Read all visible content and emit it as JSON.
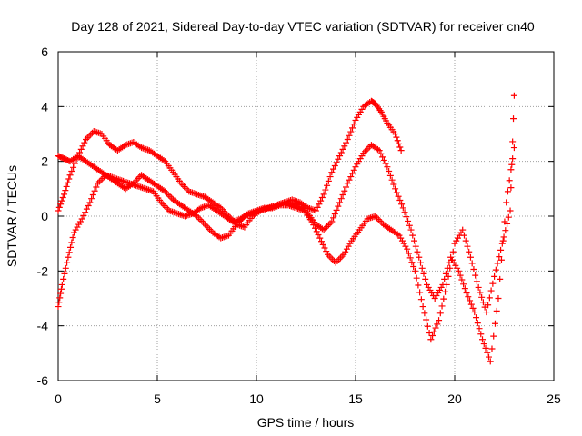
{
  "chart_data": {
    "type": "scatter",
    "title": "Day 128 of 2021, Sidereal Day-to-day VTEC variation (SDTVAR) for receiver cn40",
    "xlabel": "GPS time / hours",
    "ylabel": "SDTVAR / TECUs",
    "xlim": [
      0,
      25
    ],
    "ylim": [
      -6,
      6
    ],
    "xticks": [
      0,
      5,
      10,
      15,
      20,
      25
    ],
    "yticks": [
      -6,
      -4,
      -2,
      0,
      2,
      4,
      6
    ],
    "grid": true,
    "marker": "plus",
    "color": "#ff0000",
    "series": [
      {
        "x": [
          0,
          0.3,
          0.6,
          1.0,
          1.4,
          1.8,
          2.2,
          2.6,
          3.0,
          3.4,
          3.8,
          4.2,
          4.6,
          5.0,
          5.4,
          5.8,
          6.2,
          6.6,
          7.0,
          7.4,
          7.8,
          8.2,
          8.6,
          9.0,
          9.4,
          9.8,
          10.2,
          10.6,
          11.0,
          11.4,
          11.8,
          12.2,
          12.6,
          13.0,
          13.4,
          13.8,
          14.2,
          14.6,
          15.0,
          15.4,
          15.8,
          16.0,
          16.3,
          16.6,
          17.0,
          17.3
        ],
        "y": [
          0.2,
          0.8,
          1.5,
          2.2,
          2.8,
          3.1,
          3.0,
          2.6,
          2.4,
          2.6,
          2.7,
          2.5,
          2.4,
          2.2,
          2.0,
          1.6,
          1.2,
          0.9,
          0.8,
          0.7,
          0.5,
          0.3,
          0.0,
          -0.3,
          -0.4,
          0.0,
          0.2,
          0.3,
          0.4,
          0.5,
          0.6,
          0.5,
          0.3,
          0.2,
          0.8,
          1.6,
          2.2,
          2.8,
          3.5,
          4.0,
          4.2,
          4.1,
          3.8,
          3.4,
          3.0,
          2.4
        ]
      },
      {
        "x": [
          0,
          0.3,
          0.6,
          1.0,
          1.4,
          1.8,
          2.2,
          2.6,
          3.0,
          3.4,
          3.8,
          4.2,
          4.6,
          5.0,
          5.4,
          5.8,
          6.2,
          6.6,
          7.0,
          7.4,
          7.8,
          8.2,
          8.6,
          9.0,
          9.4,
          9.8,
          10.2,
          10.6,
          11.0,
          11.4,
          11.8,
          12.2,
          12.6,
          13.0,
          13.4,
          13.8,
          14.2,
          14.6,
          15.0,
          15.4,
          15.8,
          16.2,
          16.6,
          17.0,
          17.4,
          17.8,
          18.2,
          18.6,
          19.0,
          19.4,
          19.8,
          20.2,
          20.6,
          21.0,
          21.4,
          21.8,
          22.2,
          22.6,
          23.0
        ],
        "y": [
          2.2,
          2.1,
          2.0,
          2.2,
          2.0,
          1.8,
          1.6,
          1.4,
          1.2,
          1.0,
          1.2,
          1.5,
          1.3,
          1.1,
          0.9,
          0.6,
          0.4,
          0.2,
          0.0,
          -0.3,
          -0.6,
          -0.8,
          -0.7,
          -0.3,
          0.0,
          0.1,
          0.2,
          0.3,
          0.4,
          0.5,
          0.5,
          0.4,
          0.1,
          -0.3,
          -0.5,
          -0.2,
          0.5,
          1.2,
          1.8,
          2.3,
          2.6,
          2.4,
          1.8,
          1.0,
          0.3,
          -0.5,
          -1.5,
          -2.5,
          -3.0,
          -2.5,
          -1.5,
          -2.0,
          -2.8,
          -3.5,
          -4.5,
          -5.3,
          -3.0,
          0.5,
          2.5
        ]
      },
      {
        "x": [
          0,
          0.2,
          0.5,
          0.8,
          1.2,
          1.6,
          2.0,
          2.4,
          2.8,
          3.2,
          3.6,
          4.0,
          4.4,
          4.8,
          5.2,
          5.6,
          6.0,
          6.4,
          6.8,
          7.2,
          7.6,
          8.0,
          8.4,
          8.8,
          9.2,
          9.6,
          10.0,
          10.4,
          10.8,
          11.2,
          11.6,
          12.0,
          12.4,
          12.8,
          13.2,
          13.6,
          14.0,
          14.4,
          14.8,
          15.2,
          15.6,
          16.0,
          16.4,
          16.8,
          17.2,
          17.6,
          18.0,
          18.4,
          18.8,
          19.2,
          19.6,
          20.0,
          20.4,
          20.8,
          21.2,
          21.6,
          22.0,
          22.4,
          22.8,
          23.0
        ],
        "y": [
          -3.3,
          -2.5,
          -1.5,
          -0.6,
          -0.1,
          0.5,
          1.2,
          1.5,
          1.4,
          1.3,
          1.2,
          1.1,
          1.0,
          0.9,
          0.5,
          0.2,
          0.1,
          0.0,
          0.1,
          0.3,
          0.4,
          0.2,
          0.0,
          -0.2,
          -0.1,
          0.1,
          0.2,
          0.3,
          0.3,
          0.4,
          0.4,
          0.3,
          0.2,
          -0.2,
          -0.8,
          -1.4,
          -1.7,
          -1.4,
          -0.9,
          -0.5,
          -0.1,
          0.0,
          -0.3,
          -0.5,
          -0.7,
          -1.2,
          -2.0,
          -3.3,
          -4.5,
          -3.8,
          -2.5,
          -1.0,
          -0.5,
          -1.5,
          -2.6,
          -3.5,
          -2.2,
          -1.0,
          0.2,
          4.4
        ]
      }
    ]
  }
}
